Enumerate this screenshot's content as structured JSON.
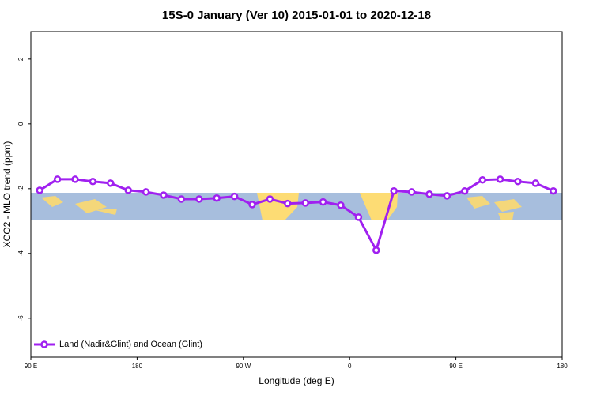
{
  "chart_data": {
    "type": "line",
    "title": "15S-0 January (Ver 10)   2015-01-01 to 2020-12-18",
    "x_label": "Longitude (deg E)",
    "y_label": "XCO2 - MLO trend (ppm)",
    "x": [
      97.5,
      112.5,
      127.5,
      142.5,
      157.5,
      172.5,
      187.5,
      202.5,
      217.5,
      232.5,
      247.5,
      262.5,
      277.5,
      292.5,
      307.5,
      322.5,
      337.5,
      352.5,
      367.5,
      382.5,
      397.5,
      412.5,
      427.5,
      442.5,
      457.5,
      472.5,
      487.5,
      502.5,
      517.5,
      532.5
    ],
    "series": [
      {
        "name": "Land (Nadir&Glint) and Ocean (Glint)",
        "color": "#a020f0",
        "values": [
          -2.05,
          -1.71,
          -1.71,
          -1.78,
          -1.83,
          -2.05,
          -2.1,
          -2.2,
          -2.32,
          -2.32,
          -2.29,
          -2.24,
          -2.49,
          -2.32,
          -2.46,
          -2.44,
          -2.41,
          -2.51,
          -2.88,
          -3.9,
          -2.07,
          -2.1,
          -2.17,
          -2.22,
          -2.07,
          -1.73,
          -1.71,
          -1.78,
          -1.83,
          -2.07
        ]
      }
    ],
    "xlim": [
      90,
      540
    ],
    "xticks": [
      {
        "value": 90,
        "label": "90 E"
      },
      {
        "value": 180,
        "label": "180"
      },
      {
        "value": 270,
        "label": "90 W"
      },
      {
        "value": 360,
        "label": "0"
      },
      {
        "value": 450,
        "label": "90 E"
      },
      {
        "value": 540,
        "label": "180"
      }
    ],
    "ylim": [
      -7.2,
      2.85
    ],
    "yticks": [
      -6,
      -4,
      -2,
      0,
      2
    ],
    "legend": "lower left"
  }
}
